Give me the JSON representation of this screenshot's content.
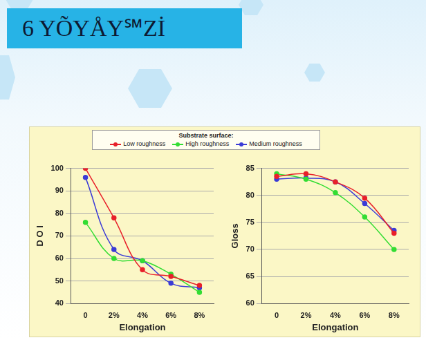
{
  "header": {
    "title": "6 YÕYÅY℠Zİ"
  },
  "legend_title": "Substrate surface:",
  "chart_data": [
    {
      "type": "line",
      "x_label": "Elongation",
      "y_label": "D O I",
      "categories": [
        "0",
        "2%",
        "4%",
        "6%",
        "8%"
      ],
      "series": [
        {
          "name": "Low roughness",
          "color": "#e8202a",
          "marker": "circle",
          "values": [
            100,
            78,
            55,
            52,
            48
          ]
        },
        {
          "name": "High roughness",
          "color": "#33dd33",
          "marker": "circle",
          "values": [
            76,
            60,
            59,
            53,
            45
          ]
        },
        {
          "name": "Medium roughness",
          "color": "#3b3bd6",
          "marker": "circle",
          "values": [
            96,
            64,
            59,
            49,
            47
          ]
        }
      ],
      "ylim": [
        40,
        100
      ],
      "yticks": [
        40,
        50,
        60,
        70,
        80,
        90,
        100
      ],
      "grid": true
    },
    {
      "type": "line",
      "x_label": "Elongation",
      "y_label": "Gloss",
      "categories": [
        "0",
        "2%",
        "4%",
        "6%",
        "8%"
      ],
      "series": [
        {
          "name": "Low roughness",
          "color": "#e8202a",
          "marker": "circle",
          "values": [
            83.5,
            84,
            82.5,
            79.5,
            73
          ]
        },
        {
          "name": "High roughness",
          "color": "#33dd33",
          "marker": "circle",
          "values": [
            84,
            83,
            80.5,
            76,
            70
          ]
        },
        {
          "name": "Medium roughness",
          "color": "#3b3bd6",
          "marker": "circle",
          "values": [
            83,
            83.2,
            82.5,
            78.5,
            73.5
          ]
        }
      ],
      "ylim": [
        60,
        85
      ],
      "yticks": [
        60,
        65,
        70,
        75,
        80,
        85
      ],
      "grid": true
    }
  ]
}
